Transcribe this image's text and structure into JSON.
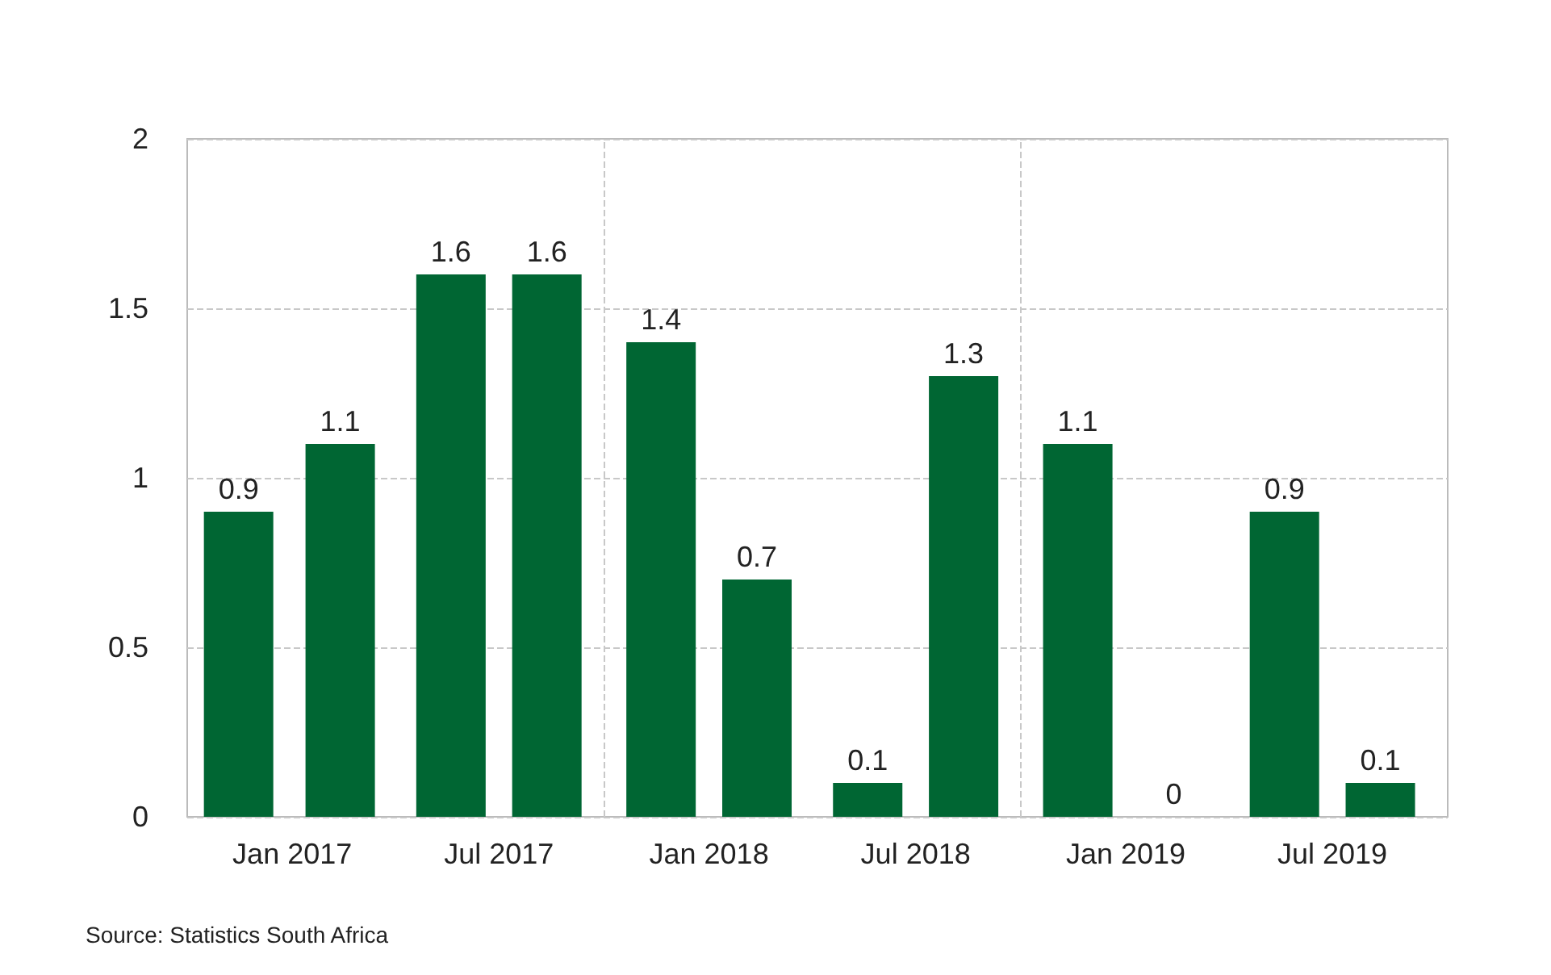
{
  "chart_data": {
    "type": "bar",
    "x": [
      "2016-11-15",
      "2017-02-12",
      "2017-05-20",
      "2017-08-12",
      "2017-11-20",
      "2018-02-12",
      "2018-05-20",
      "2018-08-12",
      "2018-11-20",
      "2019-02-12",
      "2019-05-20",
      "2019-08-12"
    ],
    "values": [
      0.9,
      1.1,
      1.6,
      1.6,
      1.4,
      0.7,
      0.1,
      1.3,
      1.1,
      0,
      0.9,
      0.1
    ],
    "color": "#006633",
    "data_labels": true,
    "xlim": [
      "2016-10-01",
      "2019-10-10"
    ],
    "xticks": [
      {
        "value": "2017-01-01",
        "label": "Jan 2017"
      },
      {
        "value": "2017-07-01",
        "label": "Jul 2017"
      },
      {
        "value": "2018-01-01",
        "label": "Jan 2018"
      },
      {
        "value": "2018-07-01",
        "label": "Jul 2018"
      },
      {
        "value": "2019-01-01",
        "label": "Jan 2019"
      },
      {
        "value": "2019-07-01",
        "label": "Jul 2019"
      }
    ],
    "ylim": [
      0,
      2
    ],
    "yticks": [
      0,
      0.5,
      1,
      1.5,
      2
    ],
    "grid": "y",
    "ref_lines": [
      {
        "axis": "x",
        "value": "2017-10-01",
        "label": null,
        "color": "#c8c8c8",
        "line_style": "dashed"
      },
      {
        "axis": "x",
        "value": "2018-10-01",
        "label": null,
        "color": "#c8c8c8",
        "line_style": "dashed"
      }
    ],
    "annotations": [
      "Source: Statistics South Africa"
    ]
  }
}
